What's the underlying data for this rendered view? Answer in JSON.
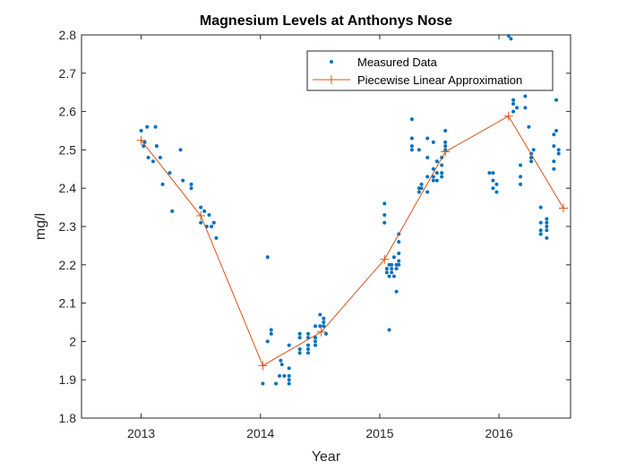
{
  "chart_data": {
    "type": "scatter",
    "title": "Magnesium Levels at Anthonys Nose",
    "xlabel": "Year",
    "ylabel": "mg/l",
    "xlim": [
      2012.5,
      2016.6
    ],
    "ylim": [
      1.8,
      2.8
    ],
    "xticks": [
      2013,
      2014,
      2015,
      2016
    ],
    "yticks": [
      1.8,
      1.9,
      2.0,
      2.1,
      2.2,
      2.3,
      2.4,
      2.5,
      2.6,
      2.7,
      2.8
    ],
    "xtick_labels": [
      "2013",
      "2014",
      "2015",
      "2016"
    ],
    "ytick_labels": [
      "1.8",
      "1.9",
      "2",
      "2.1",
      "2.2",
      "2.3",
      "2.4",
      "2.5",
      "2.6",
      "2.7",
      "2.8"
    ],
    "grid": false,
    "legend_position": "top-right",
    "colors": {
      "measured": "#0072BD",
      "approx": "#D95319"
    },
    "series": [
      {
        "name": "Measured Data",
        "type": "scatter",
        "points": [
          [
            2013.0,
            2.55
          ],
          [
            2013.03,
            2.52
          ],
          [
            2013.06,
            2.48
          ],
          [
            2013.02,
            2.51
          ],
          [
            2013.05,
            2.56
          ],
          [
            2013.1,
            2.47
          ],
          [
            2013.12,
            2.56
          ],
          [
            2013.13,
            2.51
          ],
          [
            2013.16,
            2.48
          ],
          [
            2013.18,
            2.41
          ],
          [
            2013.24,
            2.44
          ],
          [
            2013.26,
            2.34
          ],
          [
            2013.33,
            2.5
          ],
          [
            2013.35,
            2.42
          ],
          [
            2013.42,
            2.41
          ],
          [
            2013.42,
            2.4
          ],
          [
            2013.5,
            2.35
          ],
          [
            2013.5,
            2.31
          ],
          [
            2013.53,
            2.34
          ],
          [
            2013.55,
            2.3
          ],
          [
            2013.57,
            2.33
          ],
          [
            2013.59,
            2.3
          ],
          [
            2013.61,
            2.31
          ],
          [
            2013.63,
            2.27
          ],
          [
            2014.02,
            1.89
          ],
          [
            2014.06,
            2.0
          ],
          [
            2014.06,
            2.22
          ],
          [
            2014.09,
            2.03
          ],
          [
            2014.09,
            2.02
          ],
          [
            2014.13,
            1.89
          ],
          [
            2014.16,
            1.91
          ],
          [
            2014.17,
            1.95
          ],
          [
            2014.18,
            1.94
          ],
          [
            2014.2,
            1.91
          ],
          [
            2014.24,
            1.99
          ],
          [
            2014.24,
            1.93
          ],
          [
            2014.24,
            1.91
          ],
          [
            2014.24,
            1.9
          ],
          [
            2014.24,
            1.89
          ],
          [
            2014.33,
            2.02
          ],
          [
            2014.33,
            2.01
          ],
          [
            2014.33,
            1.98
          ],
          [
            2014.33,
            1.97
          ],
          [
            2014.4,
            2.02
          ],
          [
            2014.4,
            2.01
          ],
          [
            2014.4,
            1.99
          ],
          [
            2014.4,
            1.98
          ],
          [
            2014.4,
            1.97
          ],
          [
            2014.46,
            2.04
          ],
          [
            2014.46,
            2.01
          ],
          [
            2014.46,
            2.0
          ],
          [
            2014.46,
            1.99
          ],
          [
            2014.5,
            2.07
          ],
          [
            2014.5,
            2.04
          ],
          [
            2014.53,
            2.06
          ],
          [
            2014.53,
            2.05
          ],
          [
            2014.53,
            2.04
          ],
          [
            2014.55,
            2.02
          ],
          [
            2015.04,
            2.36
          ],
          [
            2015.04,
            2.33
          ],
          [
            2015.04,
            2.31
          ],
          [
            2015.06,
            2.19
          ],
          [
            2015.06,
            2.18
          ],
          [
            2015.08,
            2.03
          ],
          [
            2015.08,
            2.2
          ],
          [
            2015.08,
            2.17
          ],
          [
            2015.1,
            2.2
          ],
          [
            2015.1,
            2.19
          ],
          [
            2015.1,
            2.18
          ],
          [
            2015.12,
            2.22
          ],
          [
            2015.12,
            2.17
          ],
          [
            2015.14,
            2.13
          ],
          [
            2015.14,
            2.2
          ],
          [
            2015.14,
            2.19
          ],
          [
            2015.16,
            2.28
          ],
          [
            2015.16,
            2.26
          ],
          [
            2015.16,
            2.23
          ],
          [
            2015.16,
            2.21
          ],
          [
            2015.16,
            2.2
          ],
          [
            2015.27,
            2.58
          ],
          [
            2015.27,
            2.53
          ],
          [
            2015.27,
            2.51
          ],
          [
            2015.27,
            2.5
          ],
          [
            2015.33,
            2.5
          ],
          [
            2015.33,
            2.4
          ],
          [
            2015.33,
            2.39
          ],
          [
            2015.35,
            2.41
          ],
          [
            2015.35,
            2.4
          ],
          [
            2015.4,
            2.53
          ],
          [
            2015.4,
            2.48
          ],
          [
            2015.4,
            2.43
          ],
          [
            2015.4,
            2.39
          ],
          [
            2015.45,
            2.52
          ],
          [
            2015.45,
            2.45
          ],
          [
            2015.45,
            2.43
          ],
          [
            2015.45,
            2.42
          ],
          [
            2015.48,
            2.47
          ],
          [
            2015.48,
            2.44
          ],
          [
            2015.48,
            2.42
          ],
          [
            2015.52,
            2.48
          ],
          [
            2015.52,
            2.46
          ],
          [
            2015.52,
            2.44
          ],
          [
            2015.52,
            2.43
          ],
          [
            2015.55,
            2.55
          ],
          [
            2015.55,
            2.52
          ],
          [
            2015.55,
            2.51
          ],
          [
            2015.55,
            2.5
          ],
          [
            2015.92,
            2.44
          ],
          [
            2015.95,
            2.44
          ],
          [
            2015.95,
            2.42
          ],
          [
            2015.95,
            2.4
          ],
          [
            2015.98,
            2.41
          ],
          [
            2015.98,
            2.39
          ],
          [
            2016.08,
            2.8
          ],
          [
            2016.1,
            2.79
          ],
          [
            2016.12,
            2.63
          ],
          [
            2016.12,
            2.62
          ],
          [
            2016.12,
            2.6
          ],
          [
            2016.15,
            2.61
          ],
          [
            2016.18,
            2.46
          ],
          [
            2016.18,
            2.43
          ],
          [
            2016.18,
            2.41
          ],
          [
            2016.22,
            2.64
          ],
          [
            2016.22,
            2.61
          ],
          [
            2016.25,
            2.56
          ],
          [
            2016.27,
            2.49
          ],
          [
            2016.27,
            2.48
          ],
          [
            2016.27,
            2.47
          ],
          [
            2016.29,
            2.5
          ],
          [
            2016.35,
            2.35
          ],
          [
            2016.35,
            2.31
          ],
          [
            2016.35,
            2.29
          ],
          [
            2016.35,
            2.28
          ],
          [
            2016.4,
            2.32
          ],
          [
            2016.4,
            2.31
          ],
          [
            2016.4,
            2.3
          ],
          [
            2016.4,
            2.29
          ],
          [
            2016.4,
            2.27
          ],
          [
            2016.46,
            2.54
          ],
          [
            2016.46,
            2.51
          ],
          [
            2016.46,
            2.47
          ],
          [
            2016.46,
            2.45
          ],
          [
            2016.48,
            2.63
          ],
          [
            2016.48,
            2.55
          ],
          [
            2016.5,
            2.5
          ],
          [
            2016.5,
            2.49
          ]
        ]
      },
      {
        "name": "Piecewise Linear Approximation",
        "type": "line",
        "points": [
          [
            2013.0,
            2.525
          ],
          [
            2013.5,
            2.328
          ],
          [
            2014.02,
            1.937
          ],
          [
            2014.51,
            2.025
          ],
          [
            2015.04,
            2.214
          ],
          [
            2015.55,
            2.495
          ],
          [
            2016.08,
            2.588
          ],
          [
            2016.54,
            2.348
          ]
        ]
      }
    ]
  }
}
